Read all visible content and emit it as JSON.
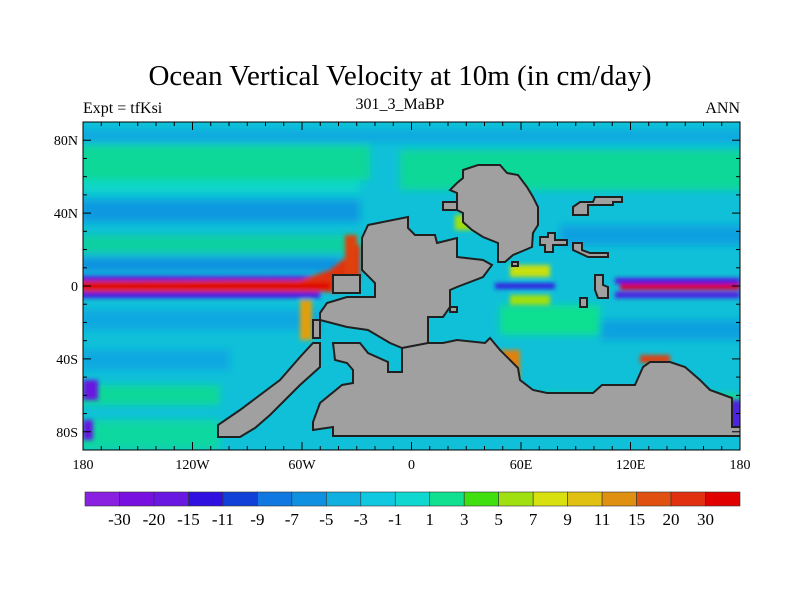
{
  "title": "Ocean Vertical Velocity at 10m (in cm/day)",
  "left_subtitle": "Expt = tfKsi",
  "center_subtitle": "301_3_MaBP",
  "right_subtitle": "ANN",
  "map": {
    "x_ticks": [
      {
        "lon": -180,
        "label": "180"
      },
      {
        "lon": -120,
        "label": "120W"
      },
      {
        "lon": -60,
        "label": "60W"
      },
      {
        "lon": 0,
        "label": "0"
      },
      {
        "lon": 60,
        "label": "60E"
      },
      {
        "lon": 120,
        "label": "120E"
      },
      {
        "lon": 180,
        "label": "180"
      }
    ],
    "y_ticks": [
      {
        "lat": 80,
        "label": "80N"
      },
      {
        "lat": 40,
        "label": "40N"
      },
      {
        "lat": 0,
        "label": "0"
      },
      {
        "lat": -40,
        "label": "40S"
      },
      {
        "lat": -80,
        "label": "80S"
      }
    ],
    "lon_range": [
      -180,
      180
    ],
    "lat_range": [
      -90,
      90
    ],
    "land_color": "#a0a0a0"
  },
  "colorbar": {
    "levels": [
      "-30",
      "-20",
      "-15",
      "-11",
      "-9",
      "-7",
      "-5",
      "-3",
      "-1",
      "1",
      "3",
      "5",
      "7",
      "9",
      "11",
      "15",
      "20",
      "30"
    ],
    "colors": [
      "#8a20e0",
      "#7810e0",
      "#6818e0",
      "#3010e0",
      "#1040d8",
      "#1078e0",
      "#1090e0",
      "#10b0e0",
      "#10c8e0",
      "#10d8d0",
      "#10e090",
      "#40e010",
      "#a0e010",
      "#d8e010",
      "#e0c010",
      "#e09010",
      "#e05010",
      "#e03010",
      "#e00000"
    ]
  }
}
